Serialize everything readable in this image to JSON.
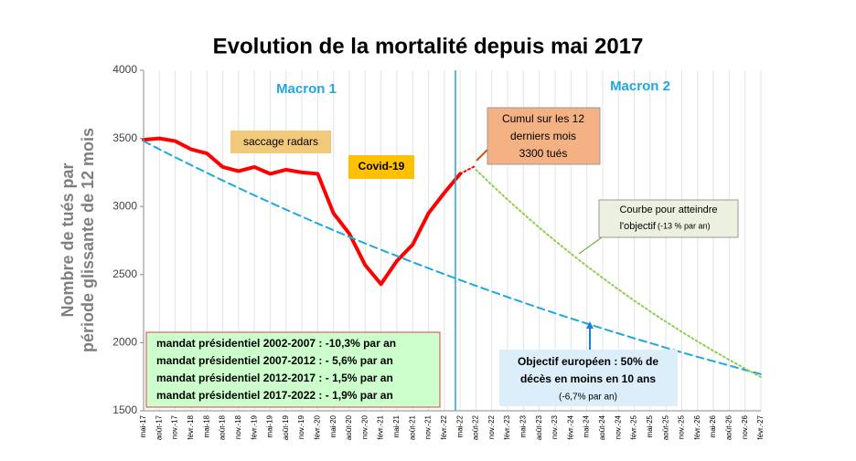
{
  "chart_data": {
    "type": "line",
    "title": "Evolution de la mortalité depuis mai 2017",
    "y_label": [
      "Nombre de tués par",
      "période  glissante de 12 mois"
    ],
    "categories": [
      "mai-17",
      "août-17",
      "nov.-17",
      "févr.-18",
      "mai-18",
      "août-18",
      "nov.-18",
      "févr.-19",
      "mai-19",
      "août-19",
      "nov.-19",
      "févr.-20",
      "mai-20",
      "août-20",
      "nov.-20",
      "févr.-21",
      "mai-21",
      "août-21",
      "nov.-21",
      "févr.-22",
      "mai-22",
      "août-22",
      "nov.-22",
      "févr.-23",
      "mai-23",
      "août-23",
      "nov.-23",
      "févr.-24",
      "mai-24",
      "août-24",
      "nov.-24",
      "févr.-25",
      "mai-25",
      "août-25",
      "nov.-25",
      "févr.-26",
      "mai-26",
      "août-26",
      "nov.-26",
      "févr.-27"
    ],
    "ylim": [
      1500,
      4000
    ],
    "yticks": [
      1500,
      2000,
      2500,
      3000,
      3500,
      4000
    ],
    "grid": "x",
    "series": [
      {
        "color": "#ff0000",
        "style": "solid",
        "values": [
          3490,
          3500,
          3480,
          3420,
          3390,
          3290,
          3260,
          3290,
          3240,
          3270,
          3250,
          3240,
          2950,
          2800,
          2570,
          2430,
          2600,
          2720,
          2950,
          3100,
          3240,
          null,
          null,
          null,
          null,
          null,
          null,
          null,
          null,
          null,
          null,
          null,
          null,
          null,
          null,
          null,
          null,
          null,
          null,
          null
        ]
      },
      {
        "color": "#ff0000",
        "style": "dotted",
        "values": [
          null,
          null,
          null,
          null,
          null,
          null,
          null,
          null,
          null,
          null,
          null,
          null,
          null,
          null,
          null,
          null,
          null,
          null,
          null,
          null,
          3240,
          3300,
          null,
          null,
          null,
          null,
          null,
          null,
          null,
          null,
          null,
          null,
          null,
          null,
          null,
          null,
          null,
          null,
          null,
          null
        ]
      },
      {
        "color": "#1ea7e0",
        "style": "dashed",
        "values": [
          3480,
          3420,
          3361,
          3304,
          3247,
          3191,
          3136,
          3082,
          3029,
          2977,
          2926,
          2875,
          2826,
          2777,
          2729,
          2682,
          2637,
          2591,
          2547,
          2503,
          2460,
          2418,
          2376,
          2335,
          2295,
          2255,
          2216,
          2178,
          2141,
          2104,
          2068,
          2032,
          1998,
          1963,
          1929,
          1896,
          1864,
          1832,
          1800,
          1769
        ]
      },
      {
        "color": "#92d050",
        "style": "dotted",
        "values": [
          null,
          null,
          null,
          null,
          null,
          null,
          null,
          null,
          null,
          null,
          null,
          null,
          null,
          null,
          null,
          null,
          null,
          null,
          null,
          null,
          null,
          3270,
          3158,
          3050,
          2946,
          2845,
          2748,
          2654,
          2563,
          2476,
          2391,
          2309,
          2230,
          2154,
          2080,
          2009,
          1940,
          1874,
          1810,
          1748
        ]
      }
    ],
    "annotations": {
      "macron1": "Macron 1",
      "macron2": "Macron 2",
      "radars": "saccage radars",
      "covid": "Covid-19",
      "cumul": [
        "Cumul sur les 12",
        "derniers mois",
        "3300 tués"
      ],
      "courbe": [
        "Courbe  pour atteindre",
        "l'objectif",
        "(-13 % par an)"
      ],
      "mandats": [
        "mandat présidentiel 2002-2007 : -10,3% par an",
        "mandat présidentiel 2007-2012 : - 5,6% par an",
        "mandat présidentiel 2012-2017 : - 1,5% par an",
        "mandat présidentiel 2017-2022 : - 1,9% par an"
      ],
      "objectif": [
        "Objectif européen : 50% de",
        "décès en moins en 10 ans",
        "(-6,7% par an)"
      ]
    }
  }
}
